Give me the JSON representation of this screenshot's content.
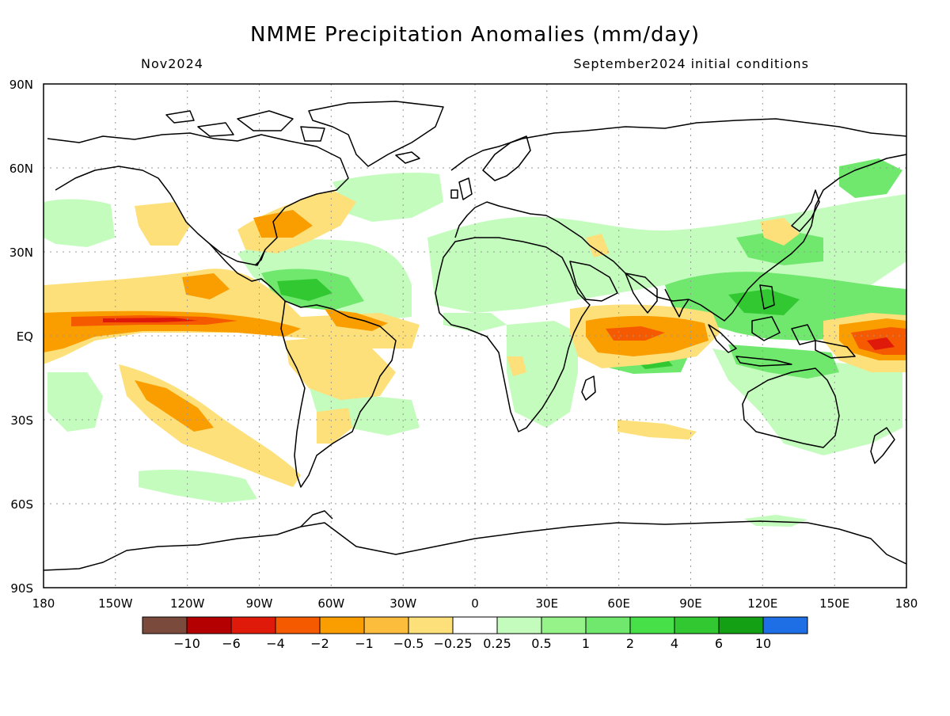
{
  "title": "NMME Precipitation Anomalies (mm/day)",
  "valid_month": "Nov2024",
  "initial_conditions": "September2024 initial conditions",
  "lat_labels": [
    "90N",
    "60N",
    "30N",
    "EQ",
    "30S",
    "60S",
    "90S"
  ],
  "lon_labels": [
    "180",
    "150W",
    "120W",
    "90W",
    "60W",
    "30W",
    "0",
    "30E",
    "60E",
    "90E",
    "120E",
    "150E",
    "180"
  ],
  "colorbar": {
    "colors": [
      "#7a4a3c",
      "#b40000",
      "#e01a0a",
      "#f55a00",
      "#fa9e00",
      "#fcbc3c",
      "#fde07a",
      "#ffffff",
      "#c4fcbe",
      "#96f38a",
      "#70e86e",
      "#48e048",
      "#32c832",
      "#14a014",
      "#1e6ee6"
    ],
    "labels": [
      "−10",
      "−6",
      "−4",
      "−2",
      "−1",
      "−0.5",
      "−0.25",
      "0.25",
      "0.5",
      "1",
      "2",
      "4",
      "6",
      "10"
    ]
  },
  "colors": {
    "dry_strong": "#e01a0a",
    "dry_moderate": "#f55a00",
    "dry_light": "#fa9e00",
    "dry_weak": "#fde07a",
    "wet_weak": "#c4fcbe",
    "wet_light": "#96f38a",
    "wet_moderate": "#70e86e",
    "wet_strong": "#32c832"
  }
}
